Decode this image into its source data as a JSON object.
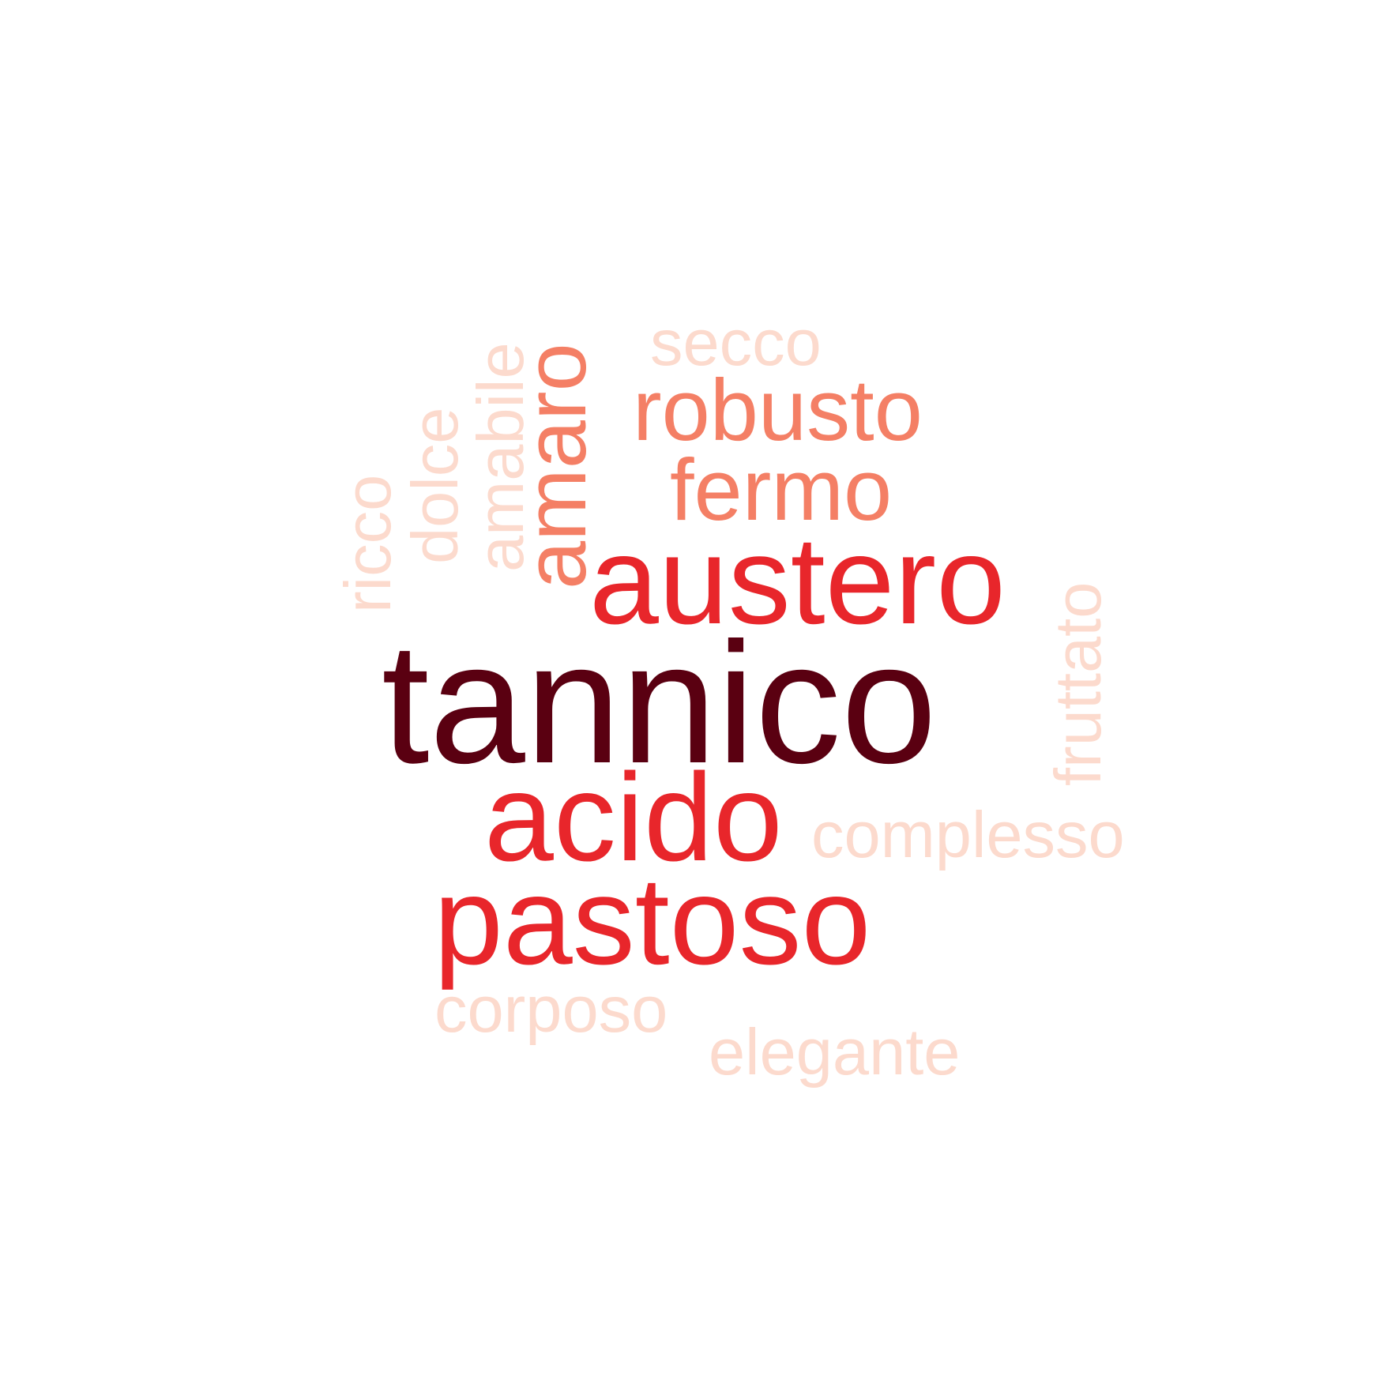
{
  "colors": {
    "background": "#ffffff",
    "darkest": "#5a0011",
    "red": "#e8262b",
    "salmon": "#f47f65",
    "pale": "#fcdacd"
  },
  "words": {
    "tannico": "tannico",
    "austero": "austero",
    "acido": "acido",
    "pastoso": "pastoso",
    "amaro": "amaro",
    "robusto": "robusto",
    "fermo": "fermo",
    "secco": "secco",
    "amabile": "amabile",
    "dolce": "dolce",
    "ricco": "ricco",
    "fruttato": "fruttato",
    "complesso": "complesso",
    "corposo": "corposo",
    "elegante": "elegante"
  }
}
